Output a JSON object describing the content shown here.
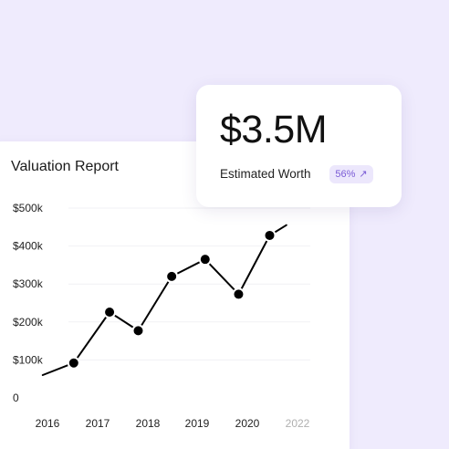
{
  "report": {
    "title": "Valuation Report"
  },
  "worth": {
    "value": "$3.5M",
    "label": "Estimated Worth",
    "change": "56%",
    "arrow_icon": "arrow-up-right-icon"
  },
  "colors": {
    "background": "#efebfd",
    "line": "#000000",
    "badge_bg": "#ece7fc",
    "badge_text": "#7a5bd6",
    "muted_tick": "#b0b0b0"
  },
  "chart_data": {
    "type": "line",
    "title": "Valuation Report",
    "xlabel": "",
    "ylabel": "",
    "x_ticks": [
      "2016",
      "2017",
      "2018",
      "2019",
      "2020",
      "2022"
    ],
    "y_ticks": [
      "0",
      "$100k",
      "$200k",
      "$300k",
      "$400k",
      "$500k"
    ],
    "xlim": [
      2016,
      2021.5
    ],
    "ylim": [
      0,
      500000
    ],
    "grid": true,
    "series": [
      {
        "points": [
          {
            "x": 2015.9,
            "y": 60000,
            "marker": false
          },
          {
            "x": 2016.55,
            "y": 92000,
            "marker": true
          },
          {
            "x": 2017.3,
            "y": 226000,
            "marker": true
          },
          {
            "x": 2017.9,
            "y": 177000,
            "marker": true
          },
          {
            "x": 2018.6,
            "y": 320000,
            "marker": true
          },
          {
            "x": 2019.3,
            "y": 365000,
            "marker": true
          },
          {
            "x": 2020.0,
            "y": 273000,
            "marker": true
          },
          {
            "x": 2020.65,
            "y": 428000,
            "marker": true
          },
          {
            "x": 2021.0,
            "y": 455000,
            "marker": false
          }
        ]
      }
    ]
  }
}
